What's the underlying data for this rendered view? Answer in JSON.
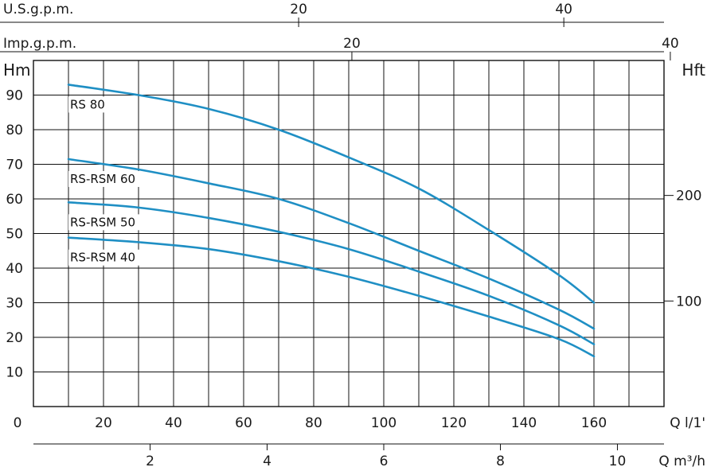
{
  "chart_data": {
    "type": "line",
    "x_unit_label": "Q l/1'",
    "y_left_unit": "Hm",
    "y_right_unit": "Hft",
    "xlim": [
      0,
      180
    ],
    "ylim": [
      0,
      100
    ],
    "x_ticks": [
      0,
      20,
      40,
      60,
      80,
      100,
      120,
      140,
      160
    ],
    "y_ticks": [
      10,
      20,
      30,
      40,
      50,
      60,
      70,
      80,
      90
    ],
    "secondary_axes": {
      "us_gpm": {
        "label": "U.S.g.p.m.",
        "ticks": [
          {
            "value": 20,
            "lpm": 75.7
          },
          {
            "value": 40,
            "lpm": 151.4
          }
        ]
      },
      "imp_gpm": {
        "label": "Imp.g.p.m.",
        "ticks": [
          {
            "value": 20,
            "lpm": 90.9
          },
          {
            "value": 40,
            "lpm": 181.8
          }
        ]
      },
      "m3h": {
        "label": "Q m³/h",
        "ticks": [
          {
            "value": 2,
            "lpm": 33.3
          },
          {
            "value": 4,
            "lpm": 66.7
          },
          {
            "value": 6,
            "lpm": 100
          },
          {
            "value": 8,
            "lpm": 133.3
          },
          {
            "value": 10,
            "lpm": 166.7
          }
        ]
      },
      "hft": {
        "label": "Hft",
        "ticks": [
          {
            "value": 100,
            "m": 30.5
          },
          {
            "value": 200,
            "m": 61
          }
        ]
      }
    },
    "series": [
      {
        "name": "RS 80",
        "x": [
          10,
          30,
          50,
          70,
          90,
          110,
          130,
          150,
          160
        ],
        "y": [
          93,
          90,
          86,
          80,
          72,
          63,
          51,
          38,
          30
        ]
      },
      {
        "name": "RS-RSM 60",
        "x": [
          10,
          30,
          50,
          70,
          90,
          110,
          130,
          150,
          160
        ],
        "y": [
          71.5,
          68.5,
          64.5,
          60,
          53,
          45,
          37,
          28,
          22.5
        ]
      },
      {
        "name": "RS-RSM 50",
        "x": [
          10,
          30,
          50,
          70,
          90,
          110,
          130,
          150,
          160
        ],
        "y": [
          59,
          57.5,
          54.5,
          50.5,
          45.5,
          39,
          32,
          23.5,
          18
        ]
      },
      {
        "name": "RS-RSM 40",
        "x": [
          10,
          30,
          50,
          70,
          90,
          110,
          130,
          150,
          160
        ],
        "y": [
          48.8,
          47.5,
          45.5,
          42,
          37.5,
          32,
          26,
          19.5,
          14.5
        ]
      }
    ],
    "color": "#1f8fc4"
  }
}
